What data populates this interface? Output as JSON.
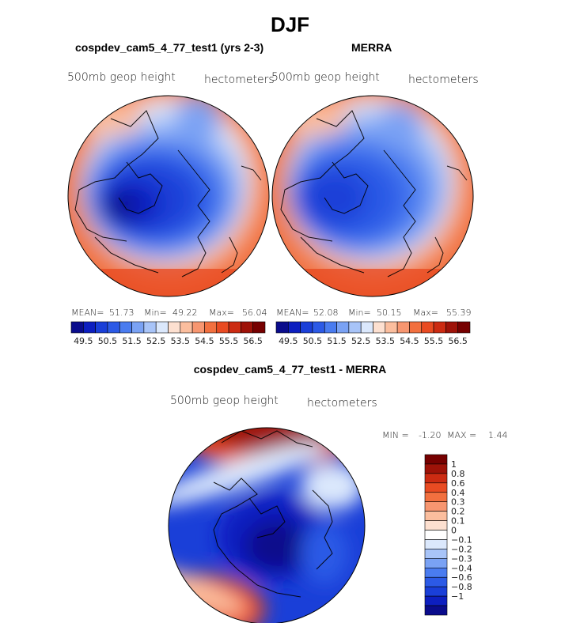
{
  "figure": {
    "title": "DJF",
    "panel_model": {
      "title": "cospdev_cam5_4_77_test1 (yrs 2-3)",
      "variable": "500mb geop height",
      "units": "hectometers",
      "stats": {
        "mean_label": "MEAN=",
        "mean": "51.73",
        "min_label": "Min=",
        "min": "49.22",
        "max_label": "Max=",
        "max": "56.04"
      }
    },
    "panel_obs": {
      "title": "MERRA",
      "variable": "500mb geop height",
      "units": "hectometers",
      "stats": {
        "mean_label": "MEAN=",
        "mean": "52.08",
        "min_label": "Min=",
        "min": "50.15",
        "max_label": "Max=",
        "max": "55.39"
      }
    },
    "panel_diff": {
      "title": "cospdev_cam5_4_77_test1 - MERRA",
      "variable": "500mb geop height",
      "units": "hectometers",
      "stats": {
        "min_label": "MIN =",
        "min": "-1.20",
        "max_label": "MAX =",
        "max": "1.44"
      }
    }
  },
  "chart_data": [
    {
      "type": "heatmap",
      "projection": "north polar stereographic",
      "title": "cospdev_cam5_4_77_test1 (yrs 2-3)",
      "variable": "500mb geop height",
      "units": "hectometers",
      "mean": 51.73,
      "min": 49.22,
      "max": 56.04,
      "colorbar_ticks": [
        "49.5",
        "50.5",
        "51.5",
        "52.5",
        "53.5",
        "54.5",
        "55.5",
        "56.5"
      ]
    },
    {
      "type": "heatmap",
      "projection": "north polar stereographic",
      "title": "MERRA",
      "variable": "500mb geop height",
      "units": "hectometers",
      "mean": 52.08,
      "min": 50.15,
      "max": 55.39,
      "colorbar_ticks": [
        "49.5",
        "50.5",
        "51.5",
        "52.5",
        "53.5",
        "54.5",
        "55.5",
        "56.5"
      ]
    },
    {
      "type": "heatmap",
      "projection": "north polar stereographic",
      "title": "cospdev_cam5_4_77_test1 - MERRA",
      "variable": "500mb geop height",
      "units": "hectometers",
      "min": -1.2,
      "max": 1.44,
      "colorbar_ticks": [
        "1",
        "0.8",
        "0.6",
        "0.4",
        "0.3",
        "0.2",
        "0.1",
        "0",
        "−0.1",
        "−0.2",
        "−0.3",
        "−0.4",
        "−0.6",
        "−0.8",
        "−1"
      ]
    }
  ],
  "colors": {
    "abs_scale": [
      "#0a0c8c",
      "#0d1fc0",
      "#1a3fd8",
      "#2c5ae6",
      "#4a7cf0",
      "#7aa2f4",
      "#a8c4f8",
      "#dbe8fc",
      "#fde0d0",
      "#fbbe9e",
      "#f79670",
      "#f2703f",
      "#e94b22",
      "#cc2b12",
      "#9e1208",
      "#760000"
    ],
    "diff_scale": [
      "#0a0c8c",
      "#0d1fc0",
      "#1a3fd8",
      "#2c5ae6",
      "#4a7cf0",
      "#7aa2f4",
      "#a8c4f8",
      "#dbe8fc",
      "#ffffff",
      "#fde0d0",
      "#fbbe9e",
      "#f79670",
      "#f2703f",
      "#e94b22",
      "#cc2b12",
      "#9e1208",
      "#760000"
    ]
  }
}
